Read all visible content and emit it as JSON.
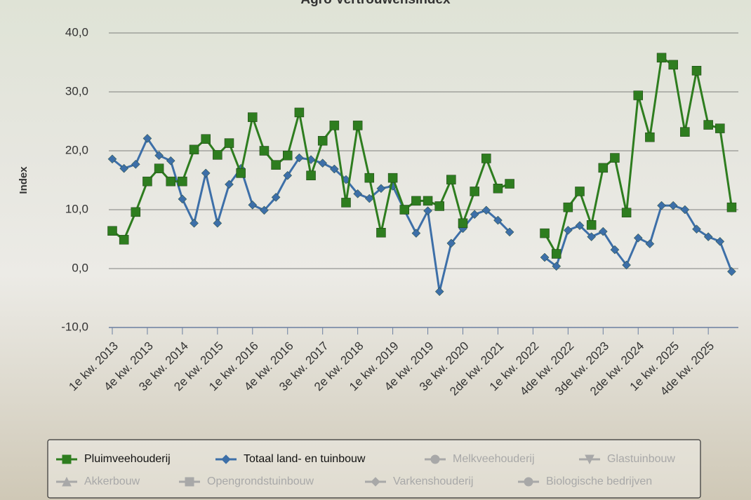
{
  "chart_data": {
    "type": "line",
    "title": "Agro Vertrouwensindex",
    "y_label": "Index",
    "categories": [
      "1e kw. 2013",
      null,
      null,
      "4e kw. 2013",
      null,
      null,
      "3e kw. 2014",
      null,
      null,
      "2e kw. 2015",
      null,
      null,
      "1e kw. 2016",
      null,
      null,
      "4e kw. 2016",
      null,
      null,
      "3e kw. 2017",
      null,
      null,
      "2e kw. 2018",
      null,
      null,
      "1e kw. 2019",
      null,
      null,
      "4e kw. 2019",
      null,
      null,
      "3e kw. 2020",
      null,
      null,
      "2de kw. 2021",
      null,
      null,
      "1e kw. 2022",
      null,
      null,
      "4de kw. 2022",
      null,
      null,
      "3de kw. 2023",
      null,
      null,
      "2de kw. 2024",
      null,
      null,
      "1e kw. 2025",
      null,
      null,
      "4de kw. 2025",
      null,
      null
    ],
    "series": [
      {
        "name": "Pluimveehouderij",
        "color": "#2e7d1f",
        "marker": "square",
        "values": [
          6.4,
          4.9,
          9.6,
          14.8,
          17.0,
          14.8,
          14.8,
          20.2,
          22.0,
          19.3,
          21.3,
          16.2,
          25.7,
          20.0,
          17.6,
          19.2,
          26.5,
          15.8,
          21.7,
          24.3,
          11.2,
          24.3,
          15.4,
          6.1,
          15.4,
          10.0,
          11.5,
          11.5,
          10.6,
          15.1,
          7.7,
          13.1,
          18.7,
          13.6,
          14.4,
          null,
          null,
          6.0,
          2.5,
          10.4,
          13.1,
          7.4,
          17.1,
          18.8,
          9.5,
          29.4,
          22.3,
          35.8,
          34.6,
          23.2,
          33.6,
          24.4,
          23.8,
          10.4
        ]
      },
      {
        "name": "Totaal land- en tuinbouw",
        "color": "#3d6fa8",
        "marker": "diamond",
        "values": [
          18.6,
          17.0,
          17.7,
          22.1,
          19.2,
          18.3,
          11.8,
          7.7,
          16.2,
          7.7,
          14.3,
          17.0,
          10.8,
          9.9,
          12.1,
          15.8,
          18.8,
          18.5,
          17.9,
          16.9,
          15.1,
          12.7,
          11.9,
          13.6,
          14.0,
          9.9,
          6.0,
          9.8,
          -3.9,
          4.3,
          6.8,
          9.2,
          9.9,
          8.2,
          6.2,
          null,
          null,
          1.9,
          0.4,
          6.5,
          7.3,
          5.4,
          6.3,
          3.2,
          0.6,
          5.2,
          4.2,
          10.7,
          10.7,
          10.0,
          6.7,
          5.4,
          4.6,
          -0.5
        ]
      }
    ],
    "hidden_series": [
      {
        "name": "Melkveehouderij",
        "marker": "circle"
      },
      {
        "name": "Glastuinbouw",
        "marker": "triangle-down"
      },
      {
        "name": "Akkerbouw",
        "marker": "triangle"
      },
      {
        "name": "Opengrondstuinbouw",
        "marker": "square"
      },
      {
        "name": "Varkenshouderij",
        "marker": "diamond"
      },
      {
        "name": "Biologische bedrijven",
        "marker": "circle"
      }
    ],
    "hidden_color": "#a8a8a8",
    "ylim": [
      -10,
      40
    ],
    "yticks": [
      {
        "value": -10,
        "label": "-10,0"
      },
      {
        "value": 0,
        "label": "0,0"
      },
      {
        "value": 10,
        "label": "10,0"
      },
      {
        "value": 20,
        "label": "20,0"
      },
      {
        "value": 30,
        "label": "30,0"
      },
      {
        "value": 40,
        "label": "40,0"
      }
    ],
    "grid": true,
    "legend": "bottom"
  }
}
